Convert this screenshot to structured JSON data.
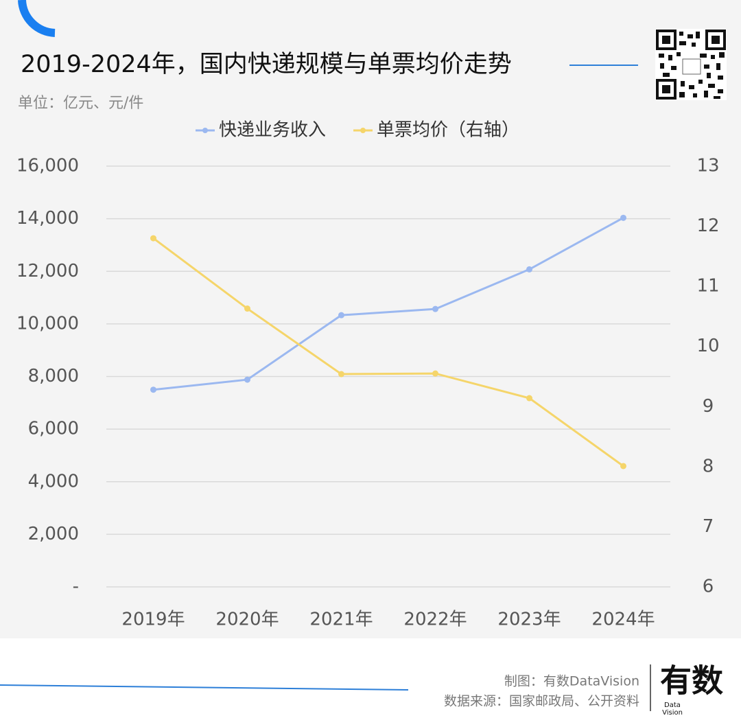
{
  "chart_data": {
    "type": "line",
    "title": "2019-2024年，国内快递规模与单票均价走势",
    "subtitle": "单位：亿元、元/件",
    "categories": [
      "2019年",
      "2020年",
      "2021年",
      "2022年",
      "2023年",
      "2024年"
    ],
    "series": [
      {
        "name": "快递业务收入",
        "color": "#9bb8f0",
        "values": [
          7498,
          7880,
          10332,
          10567,
          12074,
          14034
        ]
      },
      {
        "name": "单票均价（右轴）",
        "color": "#f5d56a",
        "axis": "y2",
        "values": [
          11.8,
          10.63,
          9.54,
          9.55,
          9.14,
          8.01
        ]
      }
    ],
    "ylim": [
      0,
      16000
    ],
    "yticks": [
      {
        "value": 0,
        "label": "-"
      },
      {
        "value": 2000,
        "label": "2,000"
      },
      {
        "value": 4000,
        "label": "4,000"
      },
      {
        "value": 6000,
        "label": "6,000"
      },
      {
        "value": 8000,
        "label": "8,000"
      },
      {
        "value": 10000,
        "label": "10,000"
      },
      {
        "value": 12000,
        "label": "12,000"
      },
      {
        "value": 14000,
        "label": "14,000"
      },
      {
        "value": 16000,
        "label": "16,000"
      }
    ],
    "y2lim": [
      6,
      13
    ],
    "y2ticks": [
      6,
      7,
      8,
      9,
      10,
      11,
      12,
      13
    ],
    "grid": true,
    "legend": "top"
  },
  "footer": {
    "credit": "制图：有数DataVision",
    "source": "数据来源：国家邮政局、公开资料",
    "logo": "有数",
    "logo_sub": [
      "Data",
      "Vision"
    ]
  }
}
